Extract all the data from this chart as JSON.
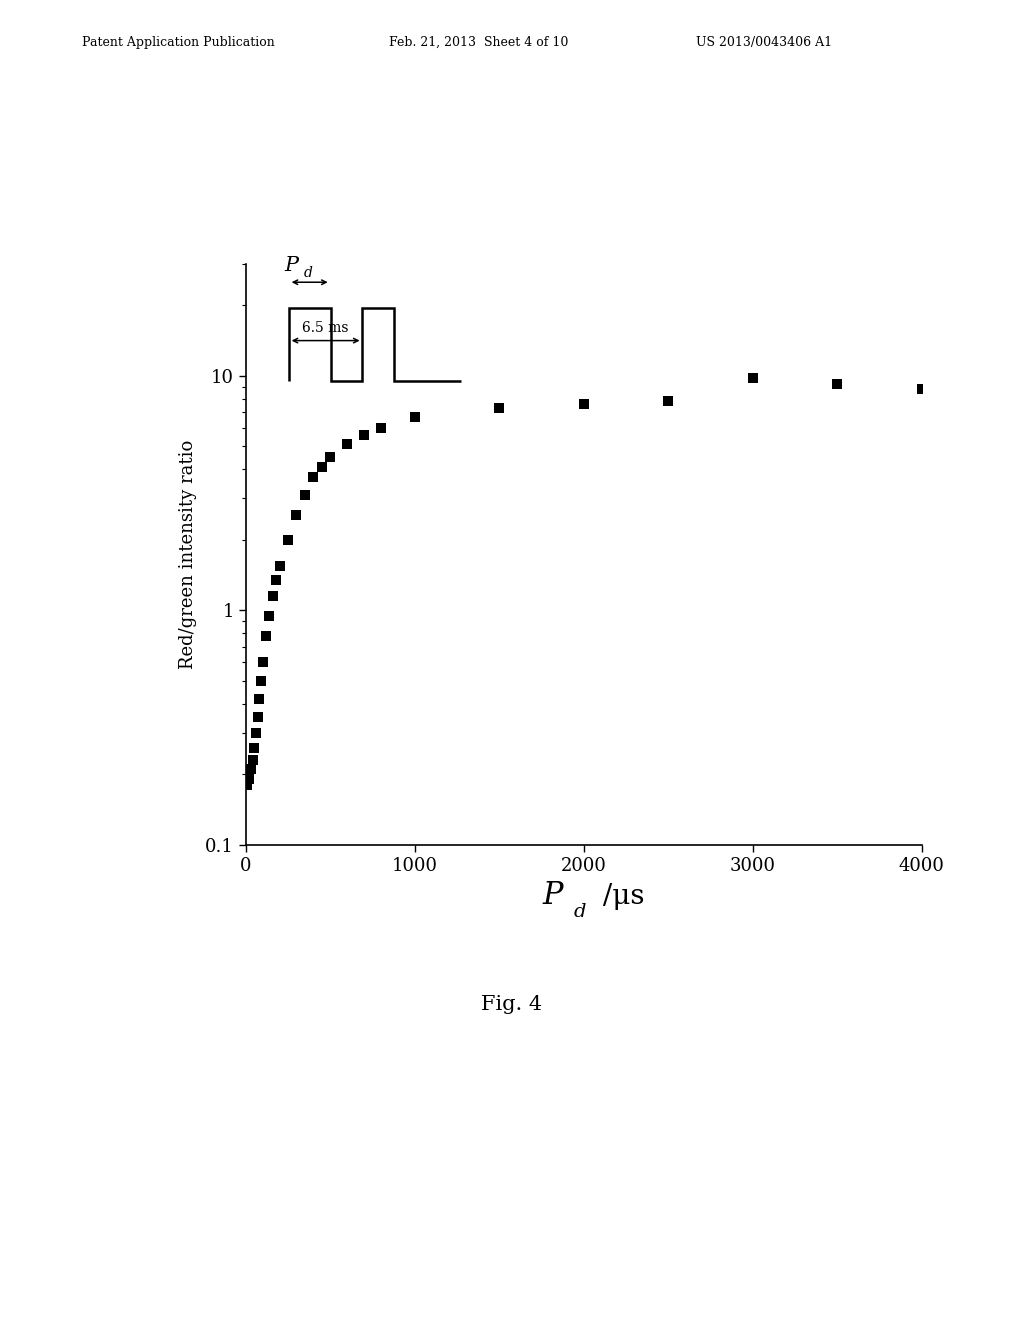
{
  "x_data": [
    10,
    20,
    30,
    40,
    50,
    60,
    70,
    80,
    90,
    100,
    120,
    140,
    160,
    180,
    200,
    250,
    300,
    350,
    400,
    450,
    500,
    600,
    700,
    800,
    1000,
    1500,
    2000,
    2500,
    3000,
    3500,
    4000
  ],
  "y_data": [
    0.18,
    0.19,
    0.21,
    0.23,
    0.26,
    0.3,
    0.35,
    0.42,
    0.5,
    0.6,
    0.78,
    0.95,
    1.15,
    1.35,
    1.55,
    2.0,
    2.55,
    3.1,
    3.7,
    4.1,
    4.5,
    5.1,
    5.6,
    6.0,
    6.7,
    7.3,
    7.6,
    7.8,
    9.8,
    9.2,
    8.8
  ],
  "xlim": [
    0,
    4000
  ],
  "ylim": [
    0.1,
    30
  ],
  "xticks": [
    0,
    1000,
    2000,
    3000,
    4000
  ],
  "yticks_log": [
    0.1,
    1,
    10
  ],
  "ylabel": "Red/green intensity ratio",
  "fig_label": "Fig. 4",
  "header_left": "Patent Application Publication",
  "header_mid": "Feb. 21, 2013  Sheet 4 of 10",
  "header_right": "US 2013/0043406 A1",
  "marker_color": "#000000",
  "bg_color": "#ffffff"
}
